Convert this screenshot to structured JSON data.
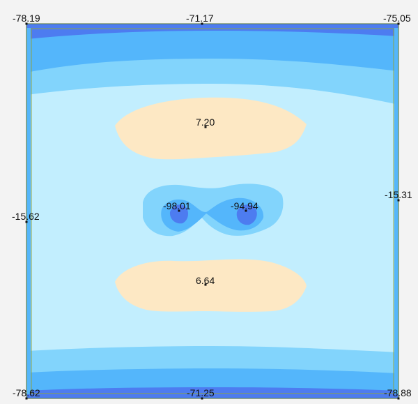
{
  "colors": {
    "background": "#f3f3f3",
    "band_dark": "#4d7cf0",
    "band_medium": "#54b6fb",
    "band_light": "#82d4fc",
    "field_base": "#c2eefe",
    "positive_zone": "#fde8c4",
    "plate_outline": "#6b8e23",
    "point_marker": "#111111"
  },
  "values": {
    "top_left": "-78.19",
    "top_mid": "-71.17",
    "top_right": "-75.05",
    "mid_left": "-15.62",
    "mid_right": "-15.31",
    "upper_center": "7.20",
    "center_left": "-98.01",
    "center_right": "-94.94",
    "lower_center": "6.64",
    "bottom_left": "-78.62",
    "bottom_mid": "-71.25",
    "bottom_right": "-78.88"
  }
}
